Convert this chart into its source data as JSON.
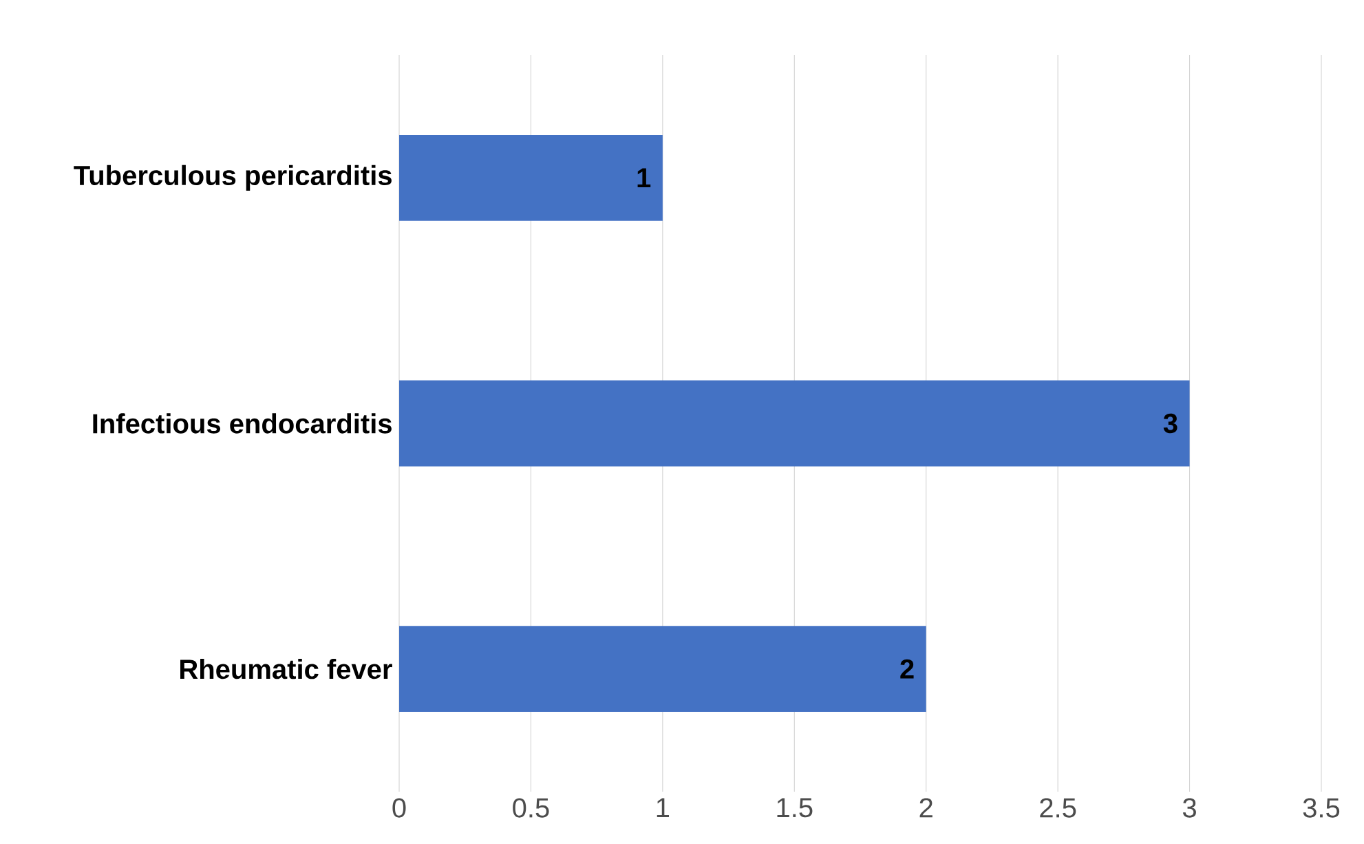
{
  "chart_data": {
    "type": "bar",
    "orientation": "horizontal",
    "categories": [
      "Tuberculous pericarditis",
      "Infectious endocarditis",
      "Rheumatic fever"
    ],
    "values": [
      1,
      3,
      2
    ],
    "color": "#4472c4",
    "xlim": [
      0,
      3.5
    ],
    "xticks": [
      0,
      0.5,
      1,
      1.5,
      2,
      2.5,
      3,
      3.5
    ],
    "grid": "x",
    "data_labels": true
  }
}
